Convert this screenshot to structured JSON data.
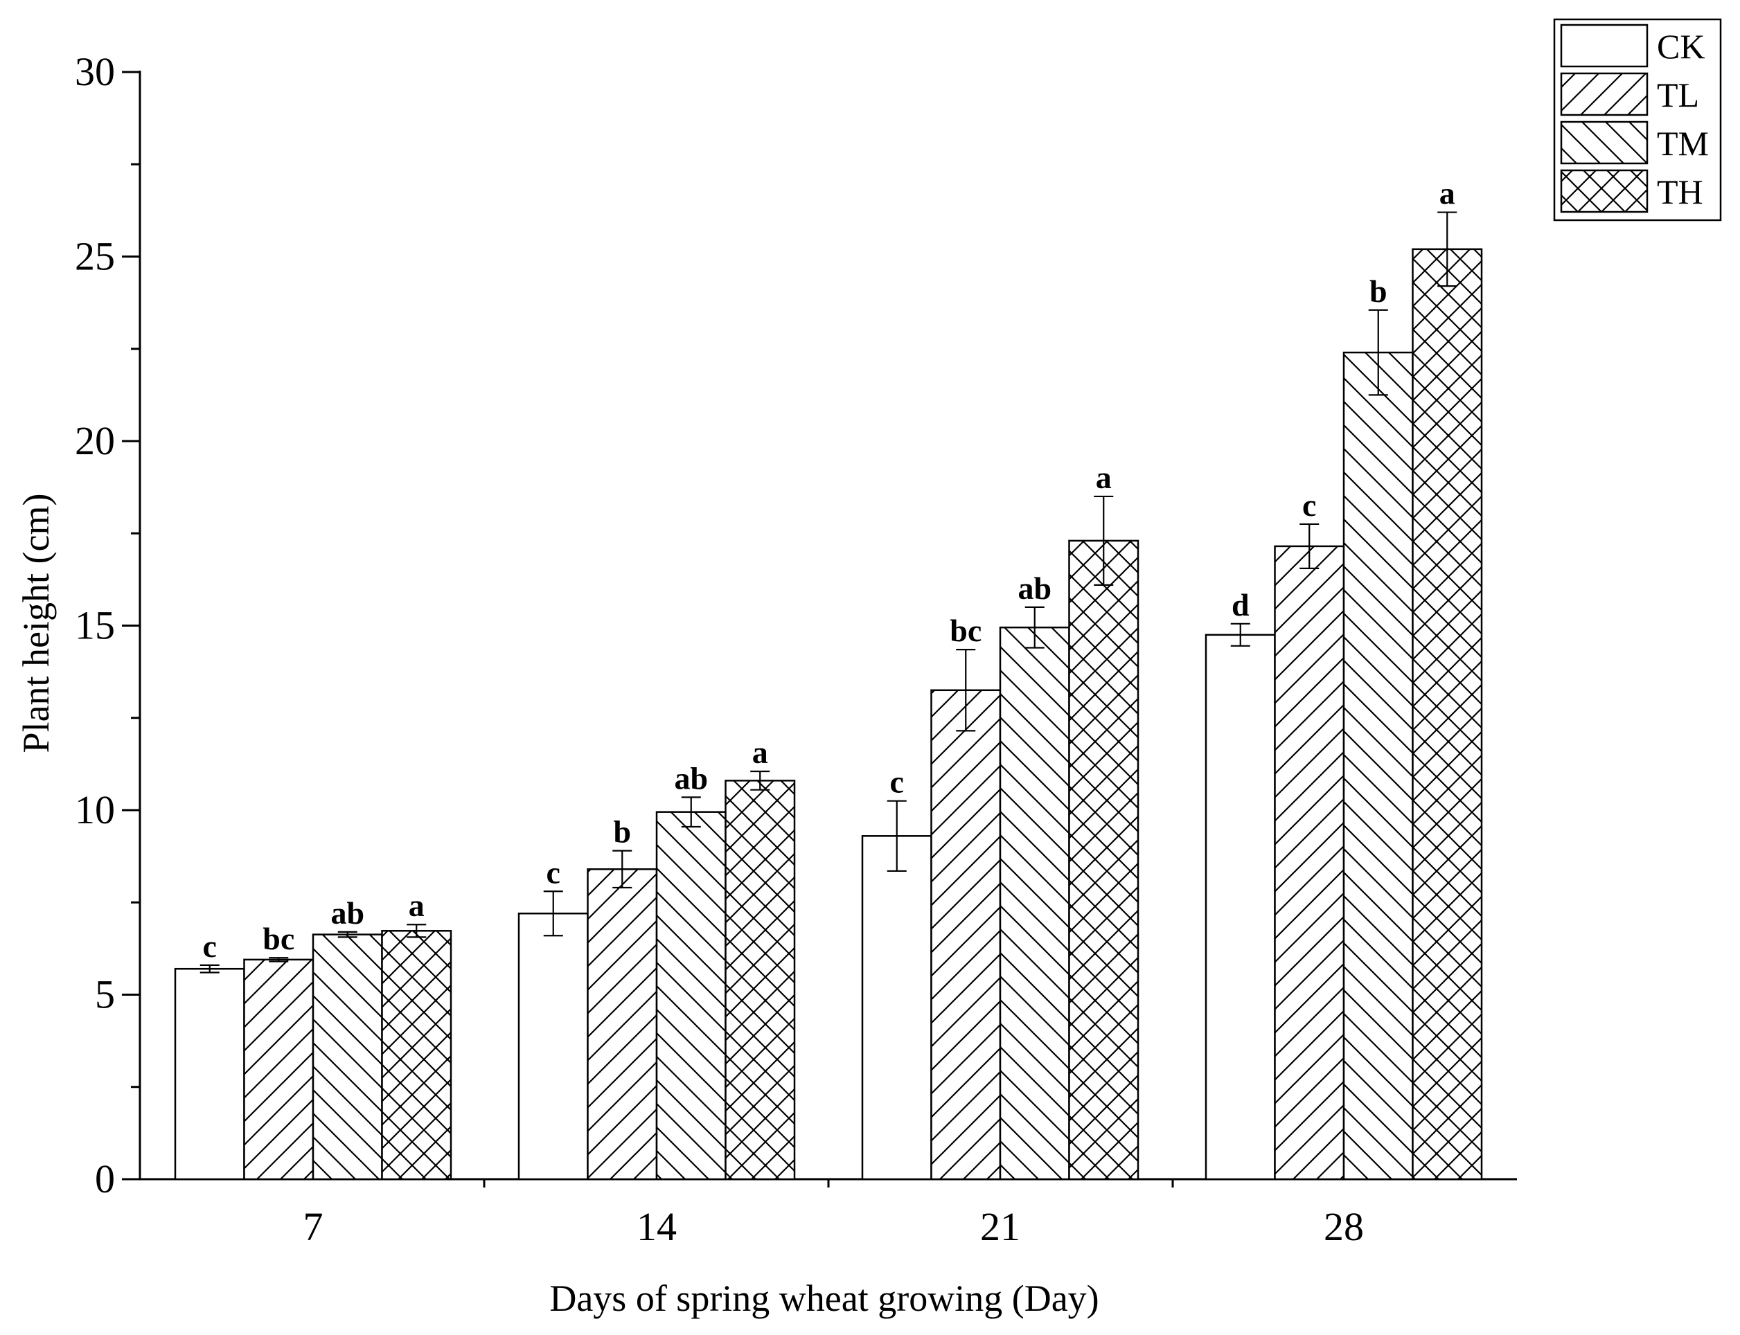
{
  "chart_data": {
    "type": "bar",
    "title": "",
    "xlabel": "Days of spring wheat growing (Day)",
    "ylabel": "Plant height (cm)",
    "ylim": [
      0,
      30
    ],
    "yticks": [
      0,
      5,
      10,
      15,
      20,
      25,
      30
    ],
    "categories": [
      "7",
      "14",
      "21",
      "28"
    ],
    "grid": false,
    "legend_position": "top-right",
    "series": [
      {
        "name": "CK",
        "pattern": "none",
        "values": [
          5.7,
          7.2,
          9.3,
          14.75
        ],
        "errors": [
          0.1,
          0.6,
          0.95,
          0.3
        ],
        "letters": [
          "c",
          "c",
          "c",
          "d"
        ]
      },
      {
        "name": "TL",
        "pattern": "forward-hatch",
        "values": [
          5.95,
          8.4,
          13.25,
          17.15
        ],
        "errors": [
          0.05,
          0.5,
          1.1,
          0.6
        ],
        "letters": [
          "bc",
          "b",
          "bc",
          "c"
        ]
      },
      {
        "name": "TM",
        "pattern": "back-hatch",
        "values": [
          6.63,
          9.95,
          14.95,
          22.4
        ],
        "errors": [
          0.07,
          0.4,
          0.55,
          1.15
        ],
        "letters": [
          "ab",
          "ab",
          "ab",
          "b"
        ]
      },
      {
        "name": "TH",
        "pattern": "cross-hatch",
        "values": [
          6.73,
          10.8,
          17.3,
          25.2
        ],
        "errors": [
          0.17,
          0.25,
          1.2,
          1.0
        ],
        "letters": [
          "a",
          "a",
          "a",
          "a"
        ]
      }
    ]
  },
  "colors": {
    "ink": "#000000",
    "bar_fill": "#ffffff"
  }
}
